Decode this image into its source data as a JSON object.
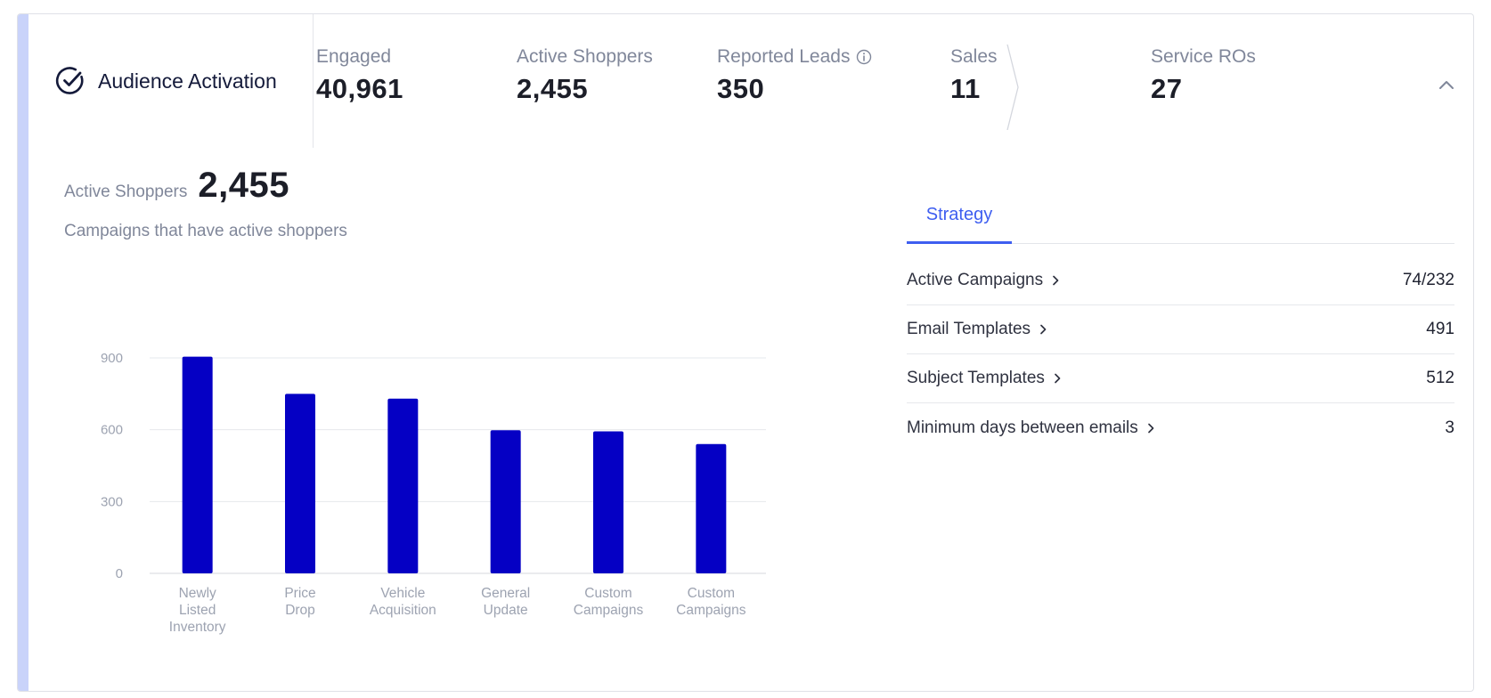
{
  "header": {
    "title": "Audience Activation",
    "metrics": [
      {
        "label": "Engaged",
        "value": "40,961"
      },
      {
        "label": "Active Shoppers",
        "value": "2,455"
      },
      {
        "label": "Reported Leads",
        "value": "350"
      },
      {
        "label": "Sales",
        "value": "11"
      },
      {
        "label": "Service ROs",
        "value": "27"
      }
    ]
  },
  "summary": {
    "label": "Active Shoppers",
    "value": "2,455",
    "subtitle": "Campaigns that have active shoppers"
  },
  "chart_data": {
    "type": "bar",
    "categories": [
      [
        "Newly",
        "Listed",
        "Inventory"
      ],
      [
        "Price",
        "Drop"
      ],
      [
        "Vehicle",
        "Acquisition"
      ],
      [
        "General",
        "Update"
      ],
      [
        "Custom",
        "Campaigns"
      ],
      [
        "Custom",
        "Campaigns"
      ]
    ],
    "values": [
      905,
      750,
      730,
      598,
      593,
      540
    ],
    "yticks": [
      0,
      300,
      600,
      900
    ],
    "ylim": [
      0,
      900
    ],
    "grid": true,
    "bar_color": "#0500c4"
  },
  "strategy": {
    "tab_label": "Strategy",
    "rows": [
      {
        "label": "Active Campaigns",
        "value": "74/232"
      },
      {
        "label": "Email Templates",
        "value": "491"
      },
      {
        "label": "Subject Templates",
        "value": "512"
      },
      {
        "label": "Minimum days between emails",
        "value": "3"
      }
    ]
  },
  "colors": {
    "accent_bar": "#c9d3fa",
    "tab_active": "#3e5ef0",
    "bar": "#0500c4"
  }
}
